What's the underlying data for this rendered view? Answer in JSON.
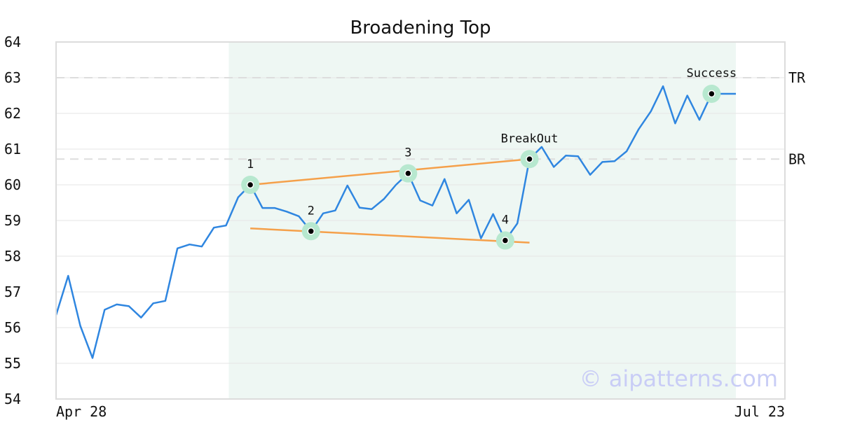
{
  "chart_data": {
    "type": "line",
    "title": "Broadening Top",
    "x_start_label": "Apr 28",
    "x_end_label": "Jul 23",
    "ylim": [
      54,
      64
    ],
    "yticks": [
      54,
      55,
      56,
      57,
      58,
      59,
      60,
      61,
      62,
      63,
      64
    ],
    "grid": true,
    "series": [
      {
        "values": [
          56.35,
          57.45,
          56.05,
          55.15,
          56.5,
          56.65,
          56.6,
          56.28,
          56.68,
          56.75,
          58.22,
          58.33,
          58.27,
          58.8,
          58.86,
          59.65,
          60.0,
          59.35,
          59.35,
          59.25,
          59.12,
          58.7,
          59.2,
          59.28,
          59.98,
          59.36,
          59.32,
          59.6,
          60.0,
          60.32,
          59.56,
          59.42,
          60.16,
          59.2,
          59.58,
          58.5,
          59.18,
          58.44,
          58.92,
          60.72,
          61.06,
          60.5,
          60.82,
          60.8,
          60.28,
          60.64,
          60.66,
          60.94,
          61.56,
          62.06,
          62.76,
          61.72,
          62.5,
          61.82,
          62.55,
          62.55,
          62.55
        ]
      }
    ],
    "highlight_range": [
      14,
      56
    ],
    "reference_lines": [
      {
        "label": "TR",
        "value": 63.0
      },
      {
        "label": "BR",
        "value": 60.72
      }
    ],
    "pattern_points": [
      {
        "label": "1",
        "index": 16,
        "value": 60.0
      },
      {
        "label": "2",
        "index": 21,
        "value": 58.7
      },
      {
        "label": "3",
        "index": 29,
        "value": 60.32
      },
      {
        "label": "4",
        "index": 37,
        "value": 58.44
      },
      {
        "label": "BreakOut",
        "index": 39,
        "value": 60.72
      },
      {
        "label": "Success",
        "index": 54,
        "value": 62.55
      }
    ],
    "trend_lines": [
      {
        "from": {
          "index": 16,
          "value": 60.0
        },
        "to": {
          "index": 39,
          "value": 60.72
        }
      },
      {
        "from": {
          "index": 16,
          "value": 58.78
        },
        "to": {
          "index": 39,
          "value": 58.38
        }
      }
    ],
    "colors": {
      "line": "#2f86e0",
      "trend": "#f5a04a",
      "highlight": "#eef7f3",
      "marker_halo": "#b7e8cf",
      "reference": "#dddddd",
      "grid": "#e6e6e6",
      "frame": "#dcdcdc"
    },
    "watermark": "© aipatterns.com"
  }
}
